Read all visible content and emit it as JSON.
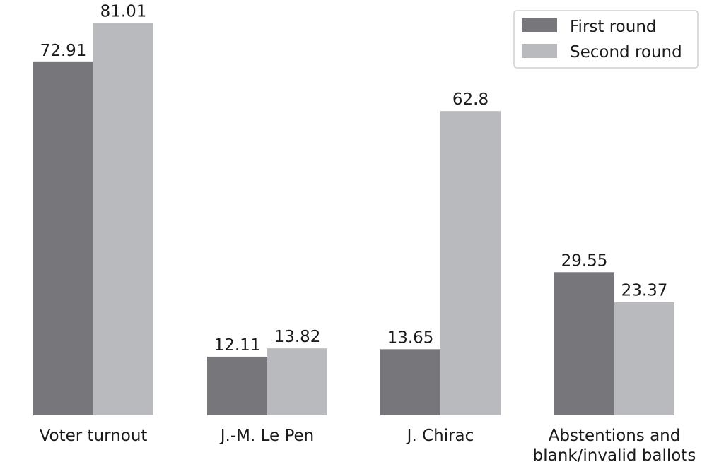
{
  "chart_data": {
    "type": "bar",
    "title": "",
    "xlabel": "",
    "ylabel": "",
    "ylim": [
      0,
      90
    ],
    "grid": false,
    "legend_position": "top-right",
    "categories": [
      [
        "Voter turnout"
      ],
      [
        "J.-M. Le Pen"
      ],
      [
        "J. Chirac"
      ],
      [
        "Abstentions and",
        "blank/invalid ballots"
      ]
    ],
    "series": [
      {
        "name": "First round",
        "color": "#77777b",
        "values": [
          72.91,
          12.11,
          13.65,
          29.55
        ]
      },
      {
        "name": "Second round",
        "color": "#b9babd",
        "values": [
          81.01,
          13.82,
          62.8,
          23.37
        ]
      }
    ],
    "data_labels": [
      [
        "72.91",
        "12.11",
        "13.65",
        "29.55"
      ],
      [
        "81.01",
        "13.82",
        "62.8",
        "23.37"
      ]
    ]
  }
}
